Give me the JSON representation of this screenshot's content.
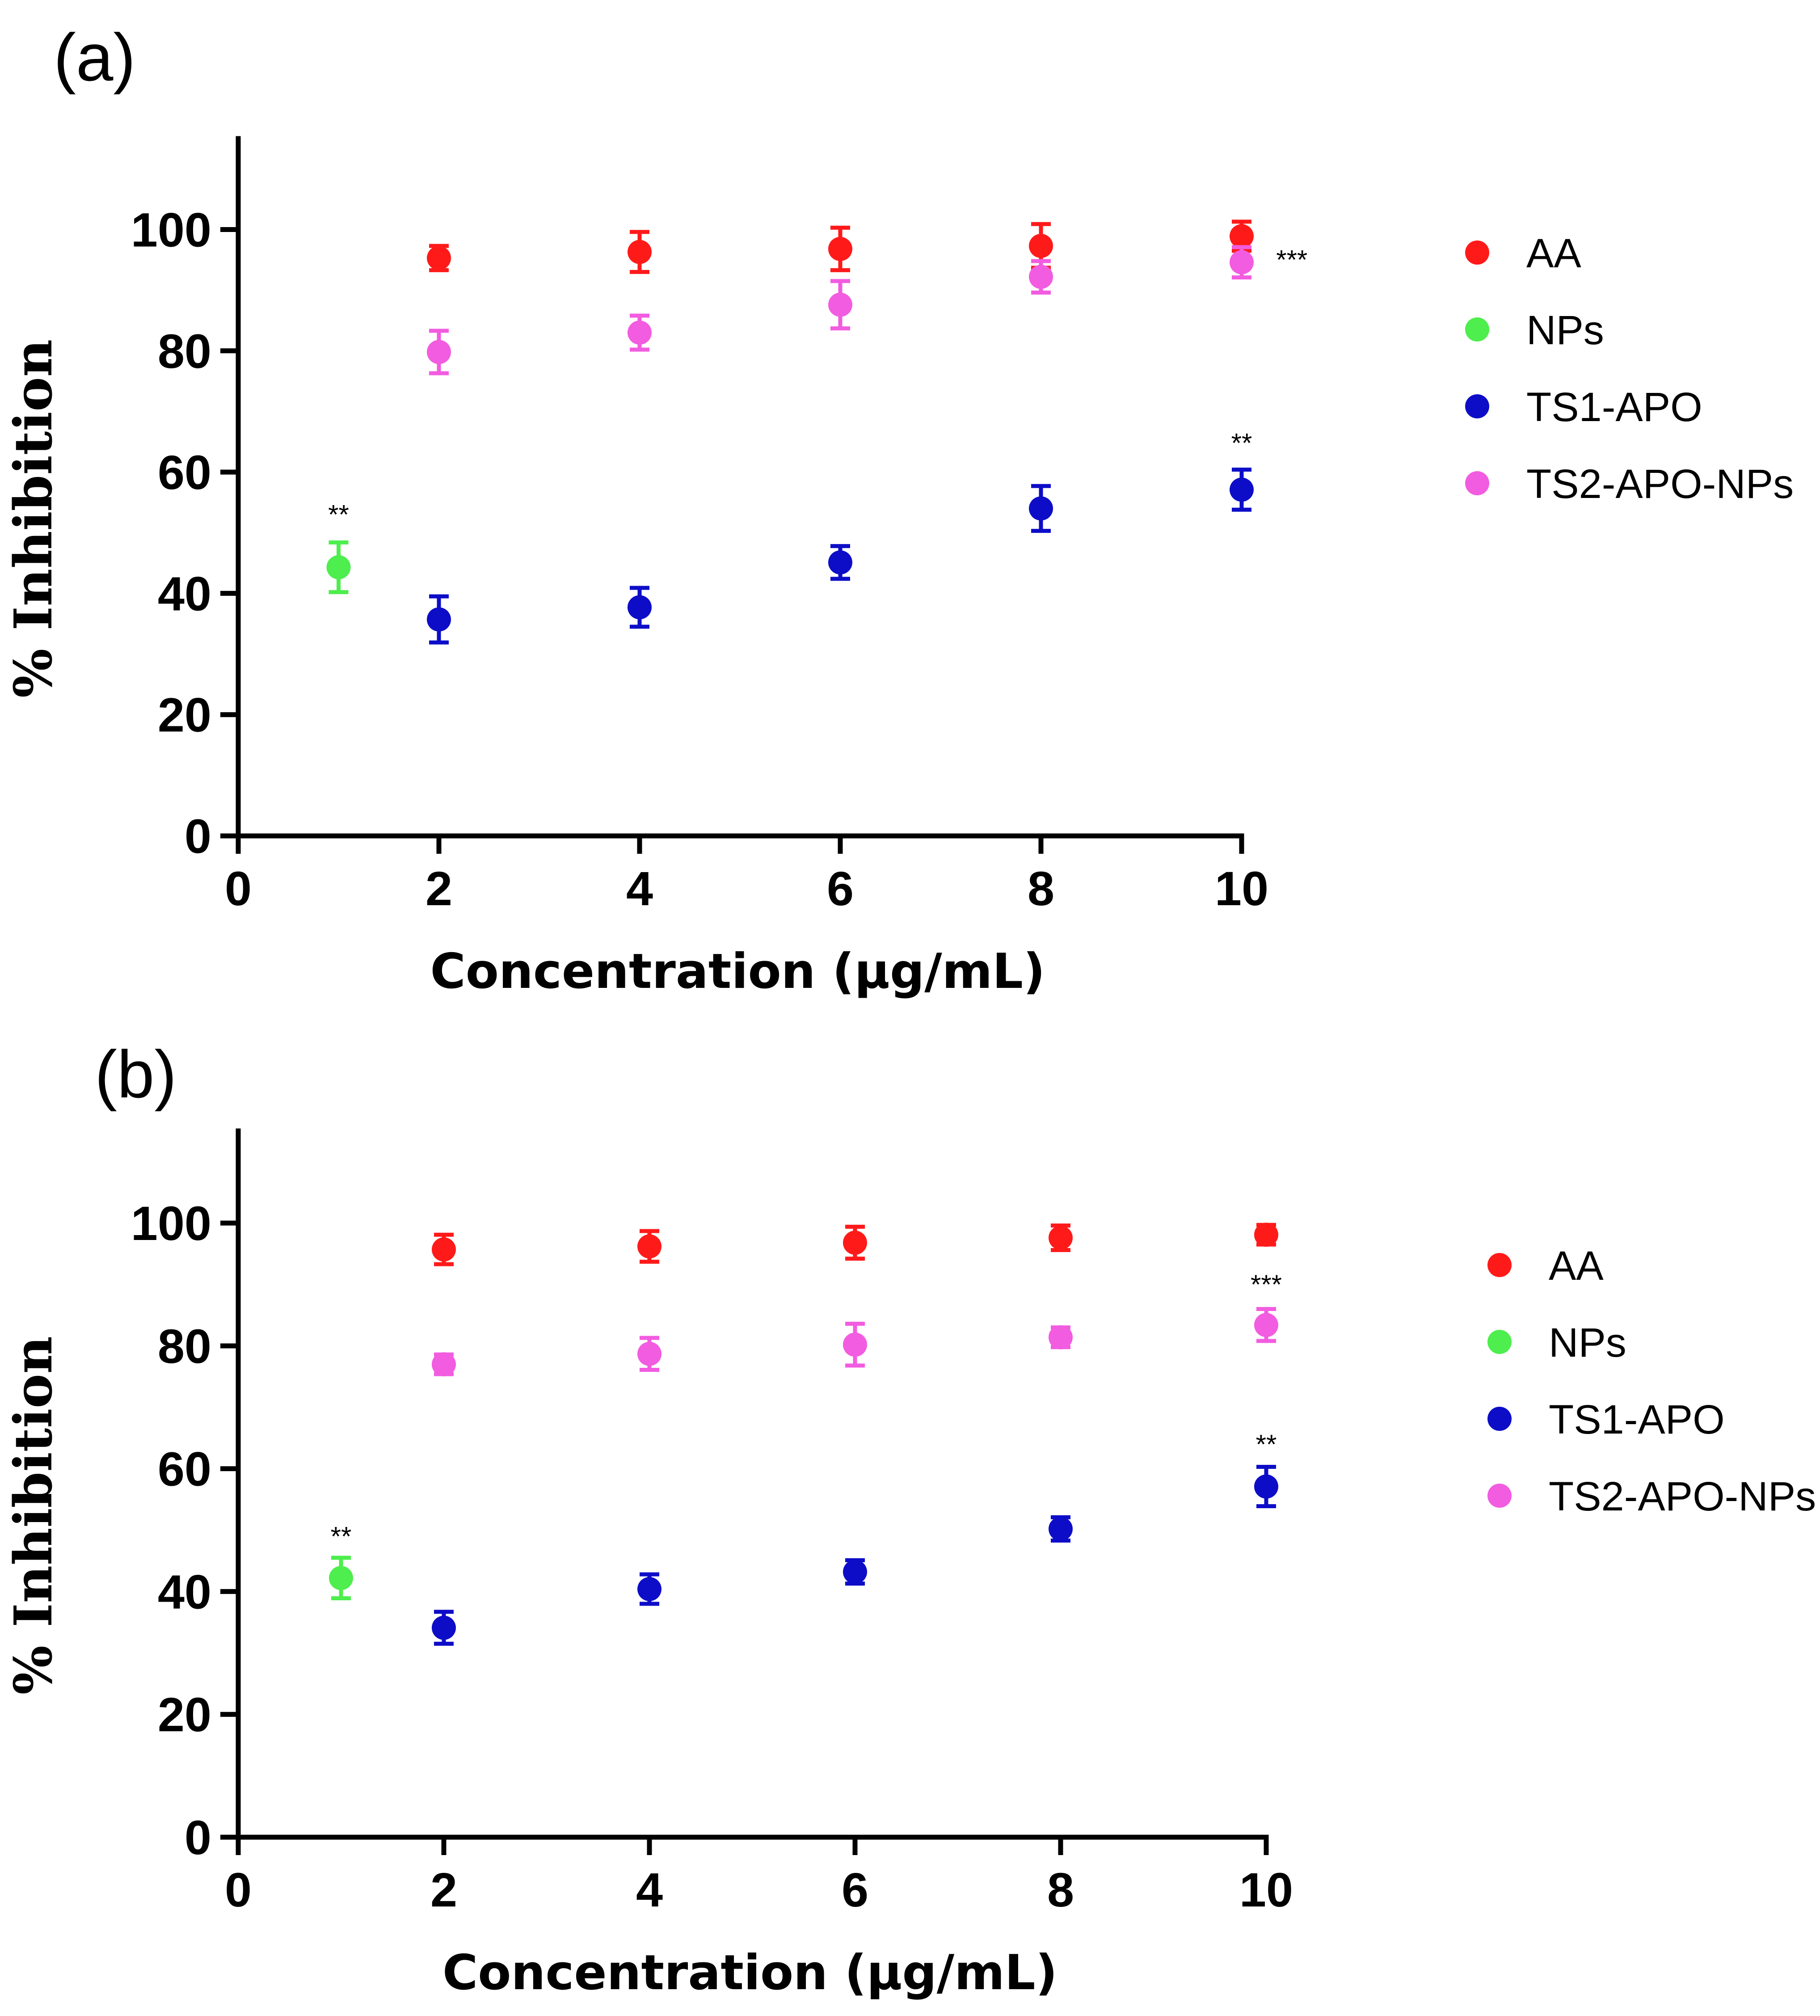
{
  "chart_data": [
    {
      "panel_label": "(a)",
      "type": "scatter",
      "xlabel": "Concentration (µg/mL)",
      "ylabel": "% Inhibition",
      "xlim": [
        0,
        10
      ],
      "ylim": [
        0,
        115
      ],
      "xticks": [
        0,
        2,
        4,
        6,
        8,
        10
      ],
      "yticks": [
        0,
        20,
        40,
        60,
        80,
        100
      ],
      "legend_position": "right",
      "series": [
        {
          "name": "AA",
          "color": "#ff1a1a",
          "x": [
            2,
            4,
            6,
            8,
            10
          ],
          "y": [
            95.3,
            96.3,
            96.8,
            97.3,
            98.9
          ],
          "err": [
            2.0,
            3.3,
            3.5,
            3.6,
            2.4
          ]
        },
        {
          "name": "NPs",
          "color": "#4dee4d",
          "x": [
            1
          ],
          "y": [
            44.3
          ],
          "err": [
            4.1
          ]
        },
        {
          "name": "TS1-APO",
          "color": "#0d0dc8",
          "x": [
            2,
            4,
            6,
            8,
            10
          ],
          "y": [
            35.7,
            37.7,
            45.1,
            54.0,
            57.1
          ],
          "err": [
            3.8,
            3.2,
            2.7,
            3.7,
            3.3
          ]
        },
        {
          "name": "TS2-APO-NPs",
          "color": "#f25ce0",
          "x": [
            2,
            4,
            6,
            8,
            10
          ],
          "y": [
            79.8,
            83.0,
            87.6,
            92.2,
            94.6
          ],
          "err": [
            3.5,
            2.8,
            3.9,
            2.6,
            2.5
          ]
        }
      ],
      "annotations": [
        {
          "text": "**",
          "x": 1,
          "y": 51.5
        },
        {
          "text": "**",
          "x": 10,
          "y": 63.3
        },
        {
          "text": "***",
          "x": 10.5,
          "y": 93.5
        }
      ]
    },
    {
      "panel_label": "(b)",
      "type": "scatter",
      "xlabel": "Concentration (µg/mL)",
      "ylabel": "% Inhibition",
      "xlim": [
        0,
        10
      ],
      "ylim": [
        0,
        115
      ],
      "xticks": [
        0,
        2,
        4,
        6,
        8,
        10
      ],
      "yticks": [
        0,
        20,
        40,
        60,
        80,
        100
      ],
      "legend_position": "right",
      "series": [
        {
          "name": "AA",
          "color": "#ff1a1a",
          "x": [
            2,
            4,
            6,
            8,
            10
          ],
          "y": [
            95.7,
            96.2,
            96.8,
            97.6,
            98.1
          ],
          "err": [
            2.4,
            2.5,
            2.6,
            2.0,
            1.6
          ]
        },
        {
          "name": "NPs",
          "color": "#4dee4d",
          "x": [
            1
          ],
          "y": [
            42.2
          ],
          "err": [
            3.3
          ]
        },
        {
          "name": "TS1-APO",
          "color": "#0d0dc8",
          "x": [
            2,
            4,
            6,
            8,
            10
          ],
          "y": [
            34.1,
            40.4,
            43.2,
            50.2,
            57.1
          ],
          "err": [
            2.6,
            2.4,
            1.9,
            1.9,
            3.2
          ]
        },
        {
          "name": "TS2-APO-NPs",
          "color": "#f25ce0",
          "x": [
            2,
            4,
            6,
            8,
            10
          ],
          "y": [
            77.0,
            78.7,
            80.2,
            81.4,
            83.4
          ],
          "err": [
            1.6,
            2.6,
            3.4,
            1.6,
            2.6
          ]
        }
      ],
      "annotations": [
        {
          "text": "**",
          "x": 1,
          "y": 47.5
        },
        {
          "text": "**",
          "x": 10,
          "y": 62.5
        },
        {
          "text": "***",
          "x": 10,
          "y": 88.5
        }
      ]
    }
  ]
}
